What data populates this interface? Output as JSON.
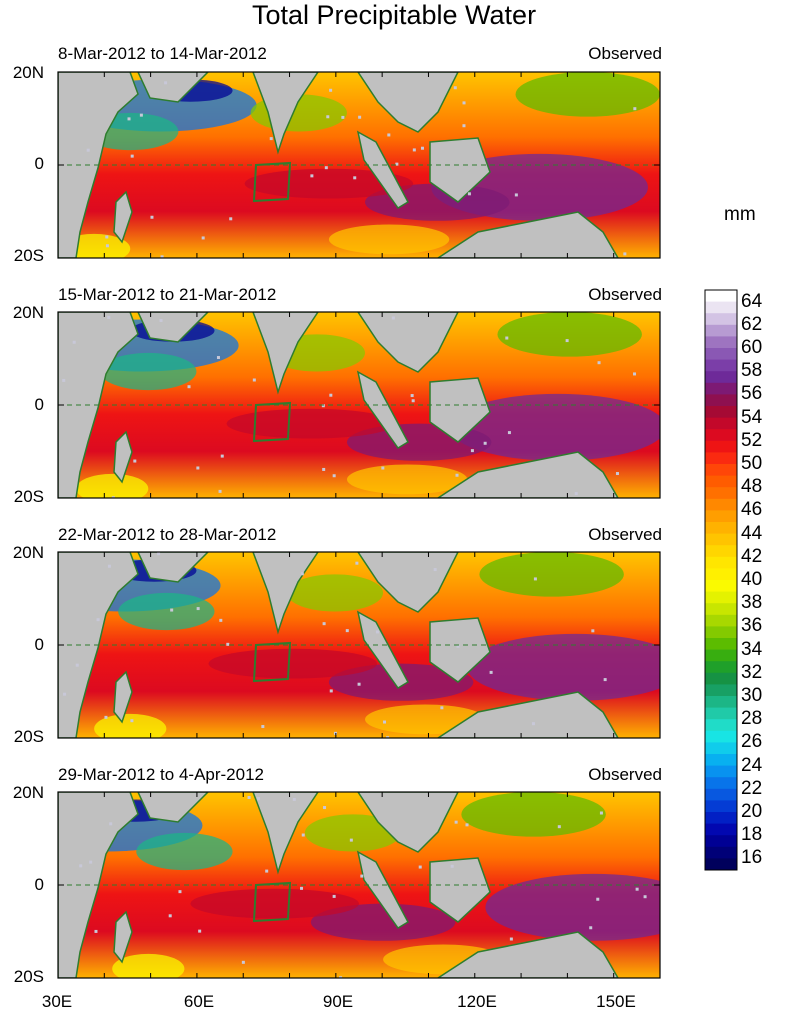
{
  "title": "Total Precipitable Water",
  "unit": "mm",
  "panels": [
    {
      "date_range": "8-Mar-2012 to 14-Mar-2012",
      "status": "Observed"
    },
    {
      "date_range": "15-Mar-2012 to 21-Mar-2012",
      "status": "Observed"
    },
    {
      "date_range": "22-Mar-2012 to 28-Mar-2012",
      "status": "Observed"
    },
    {
      "date_range": "29-Mar-2012 to 4-Apr-2012",
      "status": "Observed"
    }
  ],
  "lat_labels": [
    "20N",
    "0",
    "20S"
  ],
  "lon_labels": [
    "30E",
    "60E",
    "90E",
    "120E",
    "150E"
  ],
  "colorbar": {
    "labels": [
      "64",
      "62",
      "60",
      "58",
      "56",
      "54",
      "52",
      "50",
      "48",
      "46",
      "44",
      "42",
      "40",
      "38",
      "36",
      "34",
      "32",
      "30",
      "28",
      "26",
      "24",
      "22",
      "20",
      "18",
      "16"
    ],
    "colors": [
      "#ffffff",
      "#ebe4f2",
      "#d3c3e4",
      "#b79bd2",
      "#9e74c0",
      "#8a58b4",
      "#7b3ea8",
      "#6e2a99",
      "#7d1a74",
      "#8e1050",
      "#a50a34",
      "#c3082a",
      "#dc0a20",
      "#ee1414",
      "#fa2a10",
      "#ff4608",
      "#ff5c00",
      "#ff7000",
      "#ff8800",
      "#ff9e00",
      "#ffb200",
      "#ffc400",
      "#ffd600",
      "#ffe600",
      "#fff000",
      "#fafa00",
      "#e4f200",
      "#c8e600",
      "#a8d800",
      "#84ca00",
      "#5cbc00",
      "#38ae10",
      "#1fa02a",
      "#169244",
      "#18a064",
      "#1cb686",
      "#20caa8",
      "#20dcc8",
      "#18e4e4",
      "#10cceb",
      "#08b0f0",
      "#0892f0",
      "#0874ea",
      "#0858e0",
      "#043cd4",
      "#0220c4",
      "#0208b0",
      "#000094",
      "#000078",
      "#00005c"
    ]
  },
  "colors": {
    "land": "#c0c0c0",
    "coast": "#2e7d2e",
    "box": "#2e7d2e"
  }
}
